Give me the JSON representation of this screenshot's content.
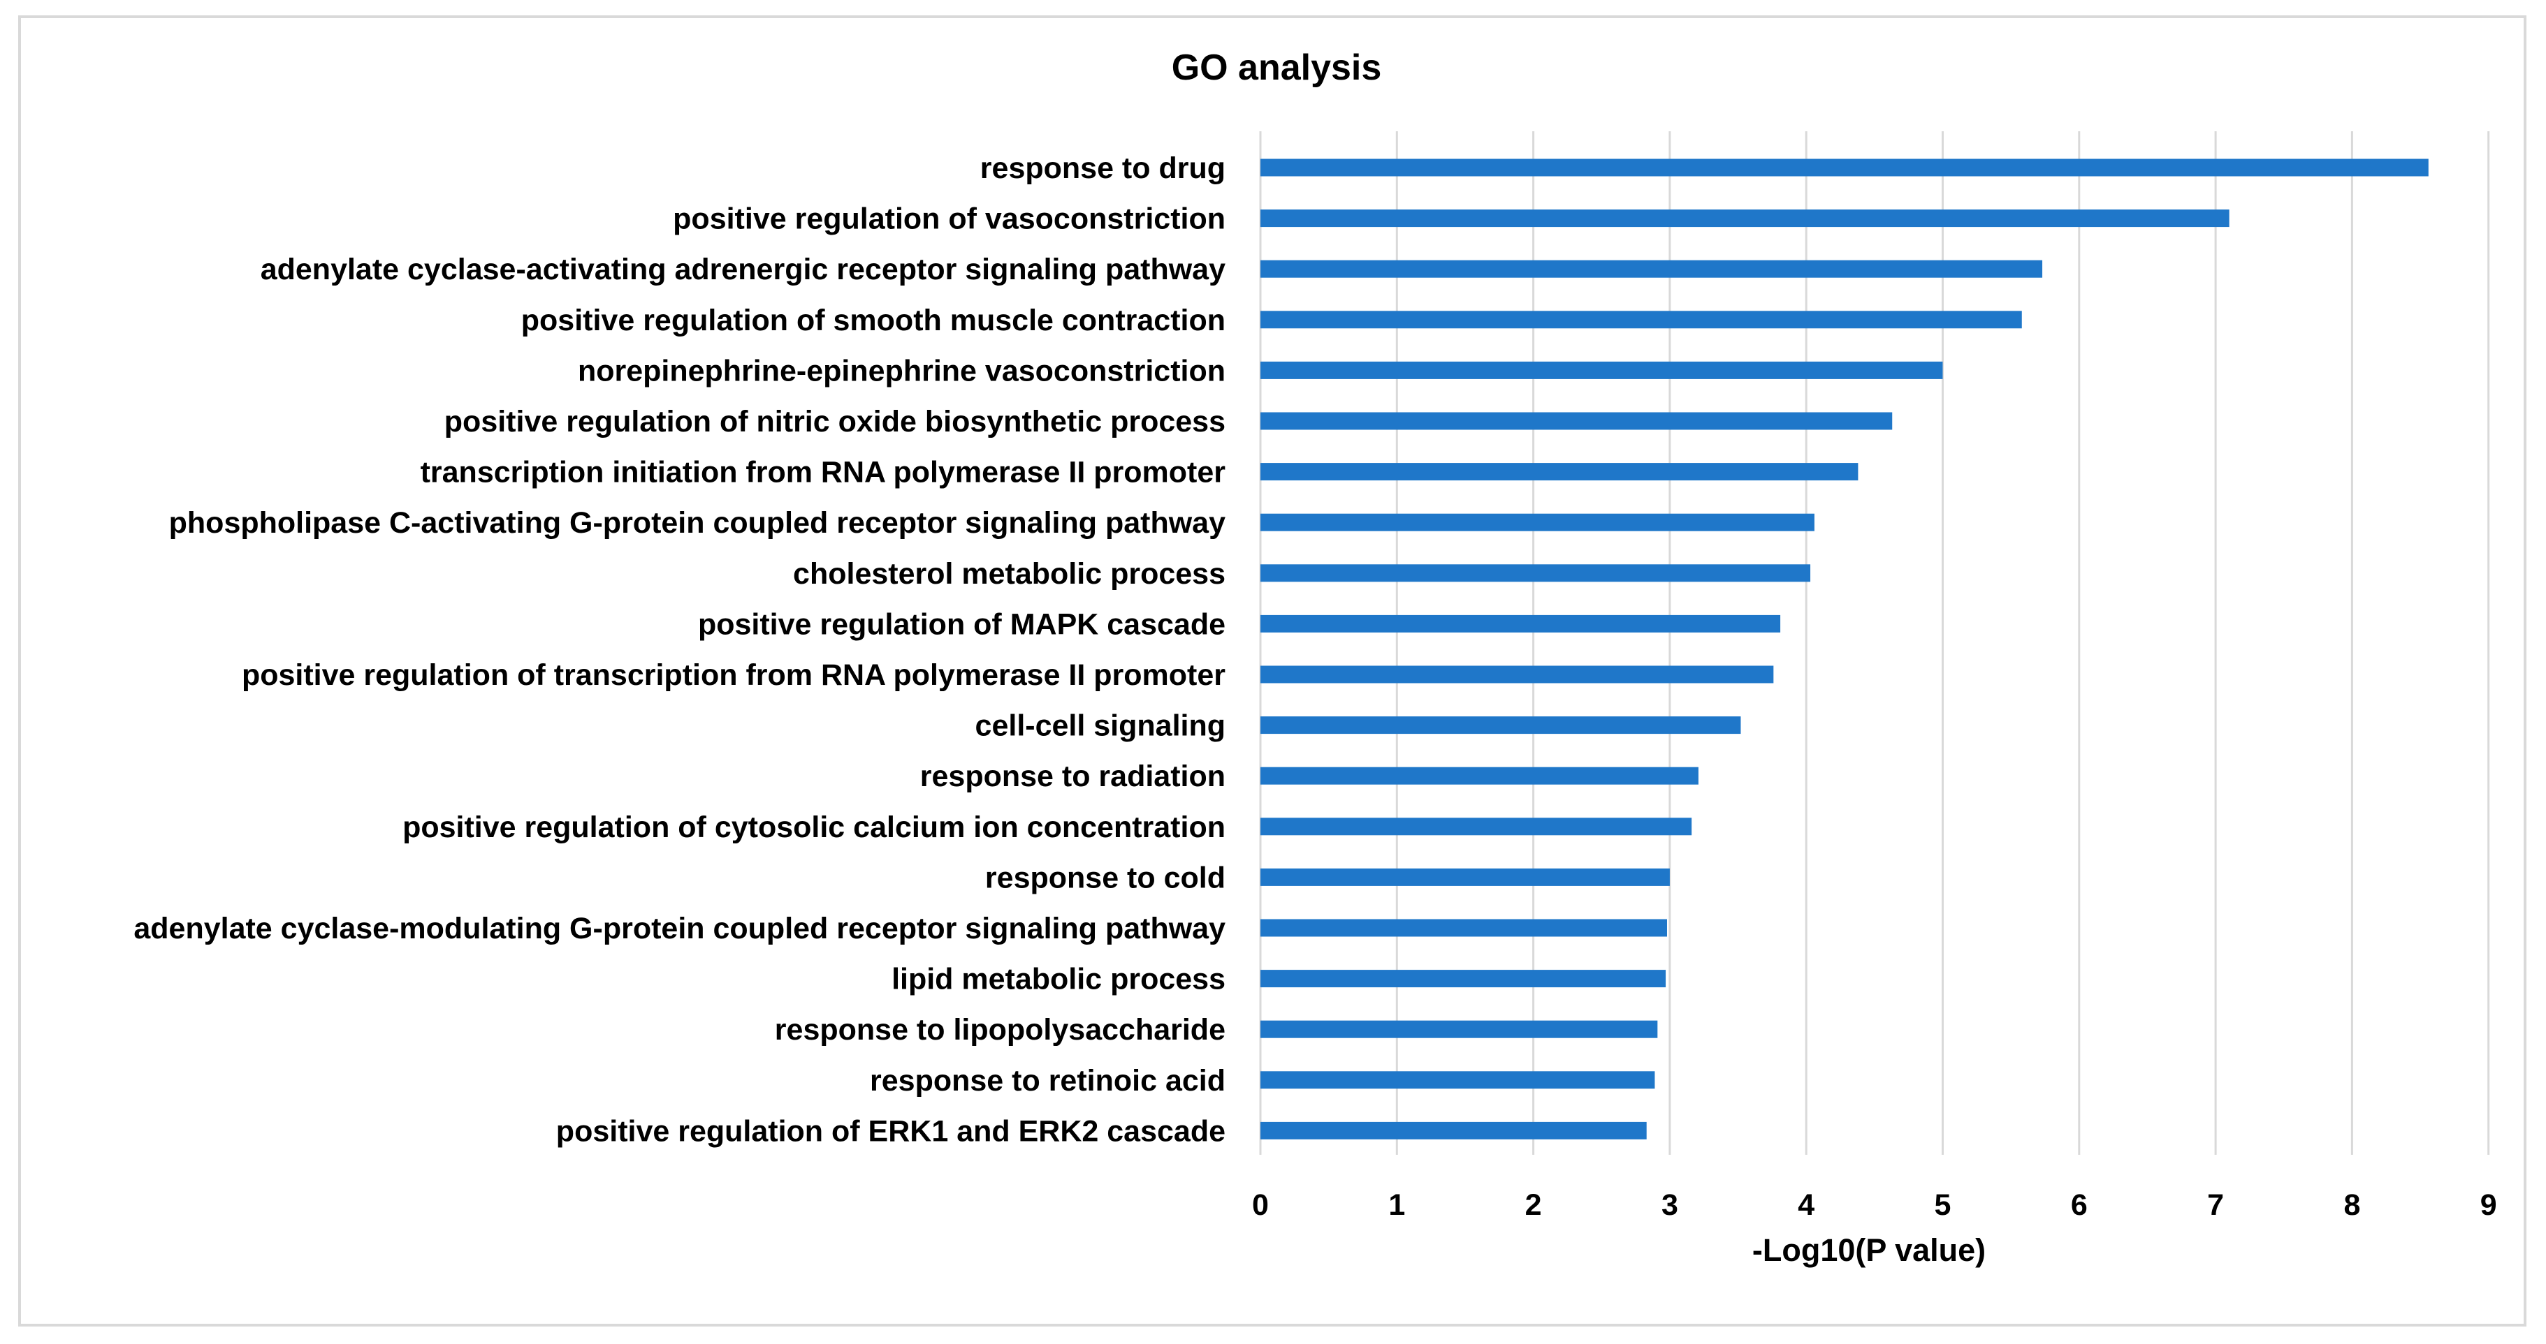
{
  "chart_data": {
    "type": "bar",
    "orientation": "horizontal",
    "title": "GO analysis",
    "xlabel": "-Log10(P value)",
    "ylabel": "",
    "xlim": [
      0,
      9
    ],
    "xticks": [
      "0",
      "1",
      "2",
      "3",
      "4",
      "5",
      "6",
      "7",
      "8",
      "9"
    ],
    "grid": "vertical",
    "legend": "none",
    "bar_color": "#1f77c9",
    "categories": [
      "response to drug",
      "positive regulation of vasoconstriction",
      "adenylate cyclase-activating adrenergic receptor signaling pathway",
      "positive regulation of smooth muscle contraction",
      "norepinephrine-epinephrine vasoconstriction",
      "positive regulation of nitric oxide biosynthetic process",
      "transcription initiation from RNA polymerase II promoter",
      "phospholipase C-activating G-protein coupled receptor signaling pathway",
      "cholesterol metabolic process",
      "positive regulation of MAPK cascade",
      "positive regulation of transcription from RNA polymerase II promoter",
      "cell-cell signaling",
      "response to radiation",
      "positive regulation of cytosolic calcium ion concentration",
      "response to cold",
      "adenylate cyclase-modulating G-protein coupled receptor signaling pathway",
      "lipid metabolic process",
      "response to lipopolysaccharide",
      "response to retinoic acid",
      "positive regulation of ERK1 and ERK2 cascade"
    ],
    "values": [
      8.56,
      7.1,
      5.73,
      5.58,
      5.0,
      4.63,
      4.38,
      4.06,
      4.03,
      3.81,
      3.76,
      3.52,
      3.21,
      3.16,
      3.0,
      2.98,
      2.97,
      2.91,
      2.89,
      2.83
    ]
  }
}
